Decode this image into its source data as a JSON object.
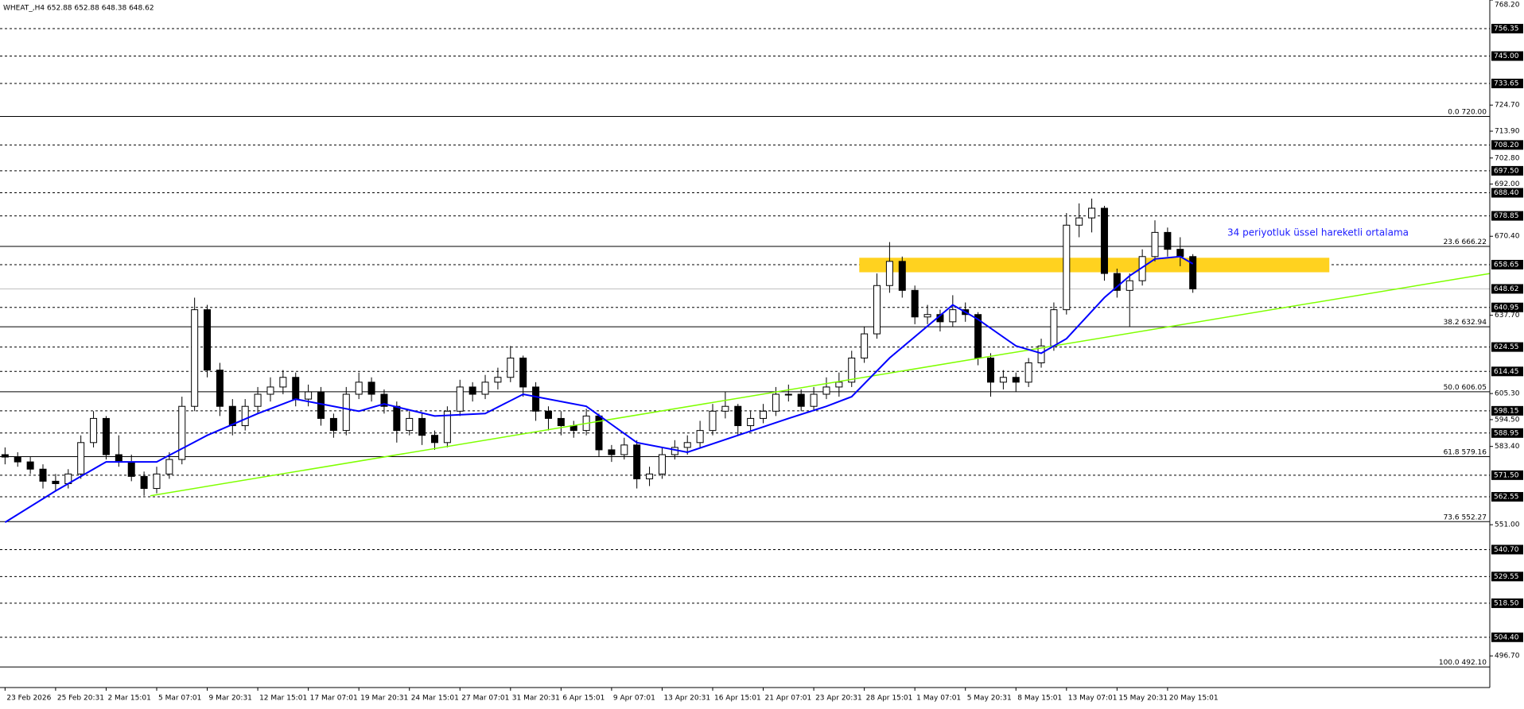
{
  "chart_data": {
    "type": "candlestick",
    "title": "WHEAT_,H4  652.88 652.88 648.38 648.62",
    "annotation": "34 periyotluk üssel hareketli ortalama",
    "xlim": [
      -0.4,
      117.5
    ],
    "ylim": [
      483.6,
      768.2
    ],
    "xticks": [
      {
        "value": 0,
        "label": "23 Feb 2026"
      },
      {
        "value": 4,
        "label": "25 Feb 20:31"
      },
      {
        "value": 8,
        "label": "2 Mar 15:01"
      },
      {
        "value": 12,
        "label": "5 Mar 07:01"
      },
      {
        "value": 16,
        "label": "9 Mar 20:31"
      },
      {
        "value": 20,
        "label": "12 Mar 15:01"
      },
      {
        "value": 24,
        "label": "17 Mar 07:01"
      },
      {
        "value": 28,
        "label": "19 Mar 20:31"
      },
      {
        "value": 32,
        "label": "24 Mar 15:01"
      },
      {
        "value": 36,
        "label": "27 Mar 07:01"
      },
      {
        "value": 40,
        "label": "31 Mar 20:31"
      },
      {
        "value": 44,
        "label": "6 Apr 15:01"
      },
      {
        "value": 48,
        "label": "9 Apr 07:01"
      },
      {
        "value": 52,
        "label": "13 Apr 20:31"
      },
      {
        "value": 56,
        "label": "16 Apr 15:01"
      },
      {
        "value": 60,
        "label": "21 Apr 07:01"
      },
      {
        "value": 64,
        "label": "23 Apr 20:31"
      },
      {
        "value": 68,
        "label": "28 Apr 15:01"
      },
      {
        "value": 72,
        "label": "1 May 07:01"
      },
      {
        "value": 76,
        "label": "5 May 20:31"
      },
      {
        "value": 80,
        "label": "8 May 15:01"
      },
      {
        "value": 84,
        "label": "13 May 07:01"
      },
      {
        "value": 88,
        "label": "15 May 20:31"
      },
      {
        "value": 92,
        "label": "20 May 15:01"
      }
    ],
    "yticks": [
      768.2,
      724.7,
      713.9,
      702.8,
      692,
      670.4,
      637.7,
      605.3,
      594.5,
      583.4,
      551,
      496.7
    ],
    "ytick_labels": [
      "768.20",
      "724.70",
      "713.90",
      "702.80",
      "692.00",
      "670.40",
      "637.70",
      "605.30",
      "594.50",
      "583.40",
      "551.00",
      "496.70"
    ],
    "levels": [
      756.35,
      {
        "value": 745,
        "label": "745.00"
      },
      733.65,
      {
        "value": 708.2,
        "label": "708.20"
      },
      {
        "value": 697.5,
        "label": "697.50"
      },
      {
        "value": 688.4,
        "label": "688.40"
      },
      678.85,
      658.65,
      640.95,
      624.55,
      614.45,
      598.15,
      588.95,
      {
        "value": 571.5,
        "label": "571.50"
      },
      562.55,
      {
        "value": 540.7,
        "label": "540.70"
      },
      529.55,
      {
        "value": 518.5,
        "label": "518.50"
      },
      {
        "value": 504.4,
        "label": "504.40"
      }
    ],
    "current_price": 648.62,
    "fib_levels": [
      {
        "ratio": "0.0",
        "value": 720,
        "label": "720.00"
      },
      {
        "ratio": "23.6",
        "value": 666.22
      },
      {
        "ratio": "38.2",
        "value": 632.94
      },
      {
        "ratio": "50.0",
        "value": 606.05
      },
      {
        "ratio": "61.8",
        "value": 579.16
      },
      {
        "ratio": "73.6",
        "value": 552.27
      },
      {
        "ratio": "100.0",
        "value": 492.1,
        "label": "492.10"
      }
    ],
    "candles": [
      [
        580,
        583,
        576,
        579
      ],
      [
        579,
        581,
        575,
        577
      ],
      [
        577,
        579,
        572,
        574
      ],
      [
        574,
        576,
        566,
        569
      ],
      [
        569,
        572,
        565,
        568
      ],
      [
        568,
        574,
        566,
        572
      ],
      [
        572,
        588,
        570,
        585
      ],
      [
        585,
        598,
        583,
        595
      ],
      [
        595,
        596,
        578,
        580
      ],
      [
        580,
        588,
        575,
        577
      ],
      [
        577,
        580,
        569,
        571
      ],
      [
        571,
        573,
        563,
        566
      ],
      [
        566,
        575,
        564,
        572
      ],
      [
        572,
        581,
        570,
        578
      ],
      [
        578,
        604,
        576,
        600
      ],
      [
        600,
        645,
        598,
        640
      ],
      [
        640,
        642,
        612,
        615
      ],
      [
        615,
        618,
        596,
        600
      ],
      [
        600,
        603,
        588,
        592
      ],
      [
        592,
        603,
        590,
        600
      ],
      [
        600,
        608,
        597,
        605
      ],
      [
        605,
        612,
        602,
        608
      ],
      [
        608,
        615,
        605,
        612
      ],
      [
        612,
        614,
        600,
        603
      ],
      [
        603,
        609,
        600,
        606
      ],
      [
        606,
        608,
        592,
        595
      ],
      [
        595,
        597,
        587,
        590
      ],
      [
        590,
        608,
        588,
        605
      ],
      [
        605,
        614,
        603,
        610
      ],
      [
        610,
        612,
        602,
        605
      ],
      [
        605,
        607,
        597,
        600
      ],
      [
        600,
        602,
        585,
        590
      ],
      [
        590,
        598,
        588,
        595
      ],
      [
        595,
        597,
        584,
        588
      ],
      [
        588,
        590,
        582,
        585
      ],
      [
        585,
        600,
        583,
        598
      ],
      [
        598,
        611,
        596,
        608
      ],
      [
        608,
        610,
        602,
        605
      ],
      [
        605,
        613,
        603,
        610
      ],
      [
        610,
        616,
        607,
        612
      ],
      [
        612,
        625,
        610,
        620
      ],
      [
        620,
        621,
        604,
        608
      ],
      [
        608,
        610,
        594,
        598
      ],
      [
        598,
        600,
        590,
        595
      ],
      [
        595,
        598,
        588,
        592
      ],
      [
        592,
        594,
        587,
        590
      ],
      [
        590,
        599,
        588,
        596
      ],
      [
        596,
        597,
        579,
        582
      ],
      [
        582,
        584,
        577,
        580
      ],
      [
        580,
        587,
        578,
        584
      ],
      [
        584,
        586,
        566,
        570
      ],
      [
        570,
        575,
        567,
        572
      ],
      [
        572,
        583,
        570,
        580
      ],
      [
        580,
        586,
        578,
        583
      ],
      [
        583,
        588,
        580,
        585
      ],
      [
        585,
        594,
        583,
        590
      ],
      [
        590,
        601,
        588,
        598
      ],
      [
        598,
        606,
        595,
        600
      ],
      [
        600,
        601,
        588,
        592
      ],
      [
        592,
        598,
        590,
        595
      ],
      [
        595,
        601,
        593,
        598
      ],
      [
        598,
        608,
        596,
        605
      ],
      [
        605,
        609,
        602,
        605
      ],
      [
        605,
        607,
        598,
        600
      ],
      [
        600,
        608,
        598,
        605
      ],
      [
        605,
        612,
        603,
        608
      ],
      [
        608,
        614,
        604,
        610
      ],
      [
        610,
        623,
        608,
        620
      ],
      [
        620,
        633,
        618,
        630
      ],
      [
        630,
        655,
        628,
        650
      ],
      [
        650,
        668,
        647,
        660
      ],
      [
        660,
        662,
        645,
        648
      ],
      [
        648,
        650,
        634,
        637
      ],
      [
        637,
        642,
        634,
        638
      ],
      [
        638,
        640,
        631,
        635
      ],
      [
        635,
        646,
        633,
        640
      ],
      [
        640,
        643,
        635,
        638
      ],
      [
        638,
        639,
        617,
        620
      ],
      [
        620,
        622,
        604,
        610
      ],
      [
        610,
        615,
        607,
        612
      ],
      [
        612,
        614,
        606,
        610
      ],
      [
        610,
        620,
        608,
        618
      ],
      [
        618,
        628,
        616,
        625
      ],
      [
        625,
        643,
        623,
        640
      ],
      [
        640,
        680,
        638,
        675
      ],
      [
        675,
        684,
        670,
        678
      ],
      [
        678,
        686,
        672,
        682
      ],
      [
        682,
        683,
        652,
        655
      ],
      [
        655,
        657,
        645,
        648
      ],
      [
        648,
        655,
        633,
        652
      ],
      [
        652,
        665,
        650,
        662
      ],
      [
        662,
        677,
        660,
        672
      ],
      [
        672,
        674,
        662,
        665
      ],
      [
        665,
        670,
        658,
        662
      ],
      [
        662,
        663,
        647,
        648.62
      ]
    ],
    "ema": {
      "color": "#0000ff",
      "x": [
        0,
        4,
        8,
        12,
        16,
        20,
        23,
        28,
        30,
        34,
        38,
        41,
        46,
        50,
        54,
        58,
        62,
        65,
        67,
        70,
        75,
        77,
        80,
        82,
        84,
        87,
        89,
        91,
        93,
        94
      ],
      "values": [
        552,
        565,
        577,
        577,
        588,
        597,
        603,
        598,
        601,
        596,
        597,
        605,
        600,
        585,
        581,
        588,
        595,
        600,
        604,
        620,
        642,
        636,
        625,
        622,
        628,
        645,
        654,
        661,
        662,
        659
      ]
    },
    "trendline": {
      "color": "#7fff00",
      "x": [
        11.5,
        117.5
      ],
      "values": [
        563,
        655
      ]
    },
    "zone": {
      "color": "#ffd21f",
      "x": [
        67.6,
        104.8
      ],
      "values": [
        655.5,
        661.5
      ]
    }
  }
}
